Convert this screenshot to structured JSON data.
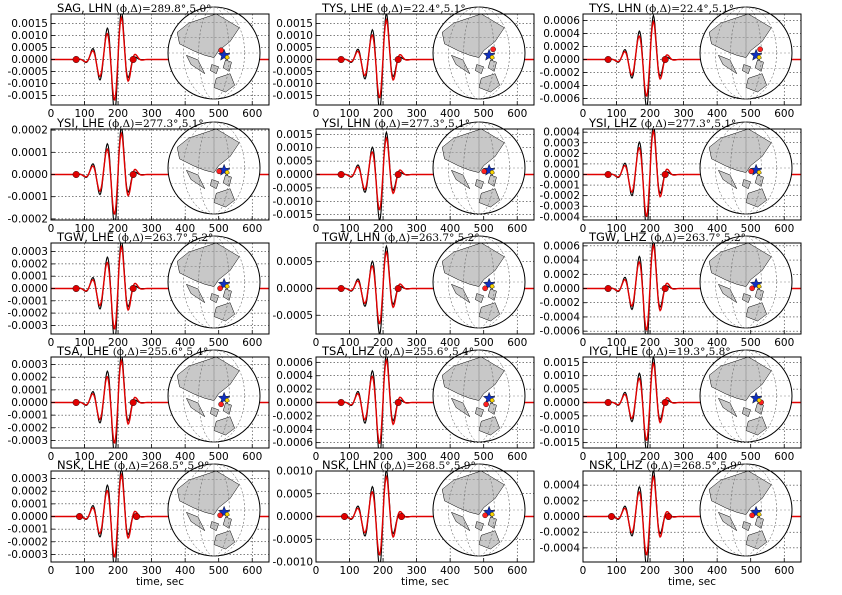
{
  "chart_data": {
    "type": "line",
    "common_xlabel": "time, sec",
    "x_ticks": [
      0,
      100,
      200,
      300,
      400,
      500,
      600
    ],
    "xlim": [
      0,
      650
    ],
    "grid": true,
    "colors": {
      "observed": "#000000",
      "synthetic": "#e00000",
      "marker": "#e00000"
    },
    "panels": [
      {
        "title": "SAG, LHN ",
        "param": "(ϕ,Δ)=289.8°,5.0°",
        "yticks": [
          "0.0015",
          "0.0010",
          "0.0005",
          "0.0000",
          "-0.0005",
          "-0.0010",
          "-0.0015"
        ],
        "yvals": [
          0.0015,
          0.001,
          0.0005,
          0,
          -0.0005,
          -0.001,
          -0.0015
        ],
        "ylim": [
          -0.0019,
          0.0019
        ],
        "peak": 0.0018,
        "pick1": 75,
        "pick2": 245,
        "show_xlabel": false
      },
      {
        "title": "TYS, LHE ",
        "param": "(ϕ,Δ)=22.4°,5.1°",
        "yticks": [
          "0.0015",
          "0.0010",
          "0.0005",
          "0.0000",
          "-0.0005",
          "-0.0010",
          "-0.0015"
        ],
        "yvals": [
          0.0015,
          0.001,
          0.0005,
          0,
          -0.0005,
          -0.001,
          -0.0015
        ],
        "ylim": [
          -0.0019,
          0.0019
        ],
        "peak": 0.0017,
        "pick1": 75,
        "pick2": 245,
        "show_xlabel": false
      },
      {
        "title": "TYS, LHN ",
        "param": "(ϕ,Δ)=22.4°,5.1°",
        "yticks": [
          "0.0006",
          "0.0004",
          "0.0002",
          "0.0000",
          "-0.0002",
          "-0.0004",
          "-0.0006"
        ],
        "yvals": [
          0.0006,
          0.0004,
          0.0002,
          0,
          -0.0002,
          -0.0004,
          -0.0006
        ],
        "ylim": [
          -0.0007,
          0.0007
        ],
        "peak": 0.0006,
        "pick1": 75,
        "pick2": 245,
        "show_xlabel": false
      },
      {
        "title": "YSI, LHE ",
        "param": "(ϕ,Δ)=277.3°,5.1°",
        "yticks": [
          "0.0002",
          "0.0001",
          "0.0000",
          "-0.0001",
          "-0.0002"
        ],
        "yvals": [
          0.0002,
          0.0001,
          0,
          -0.0001,
          -0.0002
        ],
        "ylim": [
          -0.000205,
          0.000205
        ],
        "peak": 0.00019,
        "pick1": 75,
        "pick2": 245,
        "show_xlabel": false
      },
      {
        "title": "YSI, LHN ",
        "param": "(ϕ,Δ)=277.3°,5.1°",
        "yticks": [
          "0.0015",
          "0.0010",
          "0.0005",
          "0.0000",
          "-0.0005",
          "-0.0010",
          "-0.0015"
        ],
        "yvals": [
          0.0015,
          0.001,
          0.0005,
          0,
          -0.0005,
          -0.001,
          -0.0015
        ],
        "ylim": [
          -0.0017,
          0.0017
        ],
        "peak": 0.0014,
        "pick1": 75,
        "pick2": 245,
        "show_xlabel": false
      },
      {
        "title": "YSI, LHZ ",
        "param": "(ϕ,Δ)=277.3°,5.1°",
        "yticks": [
          "0.0004",
          "0.0003",
          "0.0002",
          "0.0001",
          "0.0000",
          "-0.0001",
          "-0.0002",
          "-0.0003",
          "-0.0004"
        ],
        "yvals": [
          0.0004,
          0.0003,
          0.0002,
          0.0001,
          0,
          -0.0001,
          -0.0002,
          -0.0003,
          -0.0004
        ],
        "ylim": [
          -0.00043,
          0.00043
        ],
        "peak": 0.00042,
        "pick1": 75,
        "pick2": 245,
        "show_xlabel": false
      },
      {
        "title": "TGW, LHE ",
        "param": "(ϕ,Δ)=263.7°,5.2°",
        "yticks": [
          "0.0003",
          "0.0002",
          "0.0001",
          "0.0000",
          "-0.0001",
          "-0.0002",
          "-0.0003"
        ],
        "yvals": [
          0.0003,
          0.0002,
          0.0001,
          0,
          -0.0001,
          -0.0002,
          -0.0003
        ],
        "ylim": [
          -0.00037,
          0.00037
        ],
        "peak": 0.00035,
        "pick1": 75,
        "pick2": 245,
        "show_xlabel": false
      },
      {
        "title": "TGW, LHN ",
        "param": "(ϕ,Δ)=263.7°,5.2°",
        "yticks": [
          "0.0005",
          "0.0000",
          "-0.0005"
        ],
        "yvals": [
          0.0005,
          0,
          -0.0005
        ],
        "ylim": [
          -0.00085,
          0.00085
        ],
        "peak": 0.0007,
        "pick1": 75,
        "pick2": 245,
        "show_xlabel": false
      },
      {
        "title": "TGW, LHZ ",
        "param": "(ϕ,Δ)=263.7°,5.2°",
        "yticks": [
          "0.0006",
          "0.0004",
          "0.0002",
          "0.0000",
          "-0.0002",
          "-0.0004",
          "-0.0006"
        ],
        "yvals": [
          0.0006,
          0.0004,
          0.0002,
          0,
          -0.0002,
          -0.0004,
          -0.0006
        ],
        "ylim": [
          -0.00064,
          0.00064
        ],
        "peak": 0.00062,
        "pick1": 75,
        "pick2": 245,
        "show_xlabel": false
      },
      {
        "title": "TSA, LHE ",
        "param": "(ϕ,Δ)=255.6°,5.4°",
        "yticks": [
          "0.0003",
          "0.0002",
          "0.0001",
          "0.0000",
          "-0.0001",
          "-0.0002",
          "-0.0003"
        ],
        "yvals": [
          0.0003,
          0.0002,
          0.0001,
          0,
          -0.0001,
          -0.0002,
          -0.0003
        ],
        "ylim": [
          -0.00036,
          0.00036
        ],
        "peak": 0.00034,
        "pick1": 75,
        "pick2": 245,
        "show_xlabel": false
      },
      {
        "title": "TSA, LHZ ",
        "param": "(ϕ,Δ)=255.6°,5.4°",
        "yticks": [
          "0.0006",
          "0.0004",
          "0.0002",
          "0.0000",
          "-0.0002",
          "-0.0004",
          "-0.0006"
        ],
        "yvals": [
          0.0006,
          0.0004,
          0.0002,
          0,
          -0.0002,
          -0.0004,
          -0.0006
        ],
        "ylim": [
          -0.00068,
          0.00068
        ],
        "peak": 0.00065,
        "pick1": 75,
        "pick2": 245,
        "show_xlabel": false
      },
      {
        "title": "IYG, LHE ",
        "param": "(ϕ,Δ)=19.3°,5.8°",
        "yticks": [
          "0.0015",
          "0.0010",
          "0.0005",
          "0.0000",
          "-0.0005",
          "-0.0010",
          "-0.0015"
        ],
        "yvals": [
          0.0015,
          0.001,
          0.0005,
          0,
          -0.0005,
          -0.001,
          -0.0015
        ],
        "ylim": [
          -0.0017,
          0.0017
        ],
        "peak": 0.0015,
        "pick1": 75,
        "pick2": 245,
        "show_xlabel": false
      },
      {
        "title": "NSK, LHE ",
        "param": "(ϕ,Δ)=268.5°,5.9°",
        "yticks": [
          "0.0003",
          "0.0002",
          "0.0001",
          "0.0000",
          "-0.0001",
          "-0.0002",
          "-0.0003"
        ],
        "yvals": [
          0.0003,
          0.0002,
          0.0001,
          0,
          -0.0001,
          -0.0002,
          -0.0003
        ],
        "ylim": [
          -0.00036,
          0.00036
        ],
        "peak": 0.00034,
        "pick1": 85,
        "pick2": 255,
        "show_xlabel": true
      },
      {
        "title": "NSK, LHN ",
        "param": "(ϕ,Δ)=268.5°,5.9°",
        "yticks": [
          "0.0010",
          "0.0005",
          "0.0000",
          "-0.0005",
          "-0.0010"
        ],
        "yvals": [
          0.001,
          0.0005,
          0,
          -0.0005,
          -0.001
        ],
        "ylim": [
          -0.001,
          0.001
        ],
        "peak": 0.0009,
        "pick1": 85,
        "pick2": 255,
        "show_xlabel": true
      },
      {
        "title": "NSK, LHZ ",
        "param": "(ϕ,Δ)=268.5°,5.9°",
        "yticks": [
          "0.0004",
          "0.0002",
          "0.0000",
          "-0.0002",
          "-0.0004"
        ],
        "yvals": [
          0.0004,
          0.0002,
          0,
          -0.0002,
          -0.0004
        ],
        "ylim": [
          -0.00058,
          0.00058
        ],
        "peak": 0.00052,
        "pick1": 85,
        "pick2": 255,
        "show_xlabel": true
      }
    ]
  }
}
